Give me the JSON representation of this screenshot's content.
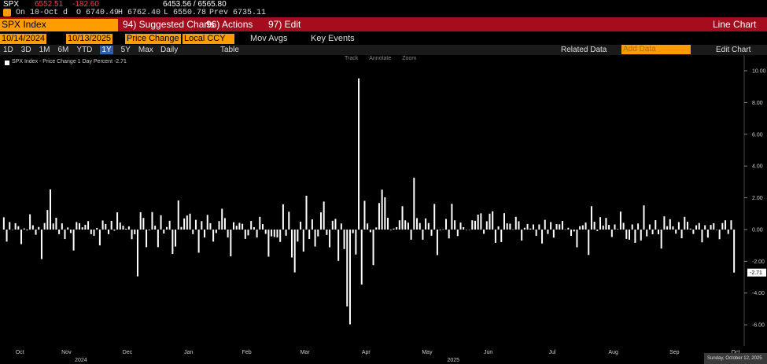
{
  "header": {
    "ticker": "SPX",
    "last": "6552.51",
    "change": "-182.60",
    "range": "6453.56 / 6565.80",
    "date": "On 10-Oct d",
    "open": "O 6740.49",
    "high": "H 6762.40",
    "low": "L 6550.78",
    "prev": "Prev 6735.11"
  },
  "toolbar": {
    "security": "SPX Index",
    "suggested": "94) Suggested Charts",
    "actions": "96) Actions",
    "edit": "97) Edit",
    "chart_type": "Line Chart"
  },
  "controls": {
    "start": "10/14/2024",
    "end": "10/13/2025",
    "field": "Price Change",
    "currency": "Local CCY",
    "mov_avgs": "Mov Avgs",
    "key_events": "Key Events"
  },
  "periods": [
    "1D",
    "3D",
    "1M",
    "6M",
    "YTD",
    "1Y",
    "5Y",
    "Max"
  ],
  "frequency": "Daily",
  "table": "Table",
  "related": "Related Data",
  "add_data": "Add Data",
  "edit_chart": "Edit Chart",
  "chart_tools": [
    "Track",
    "Annotate",
    "Zoom"
  ],
  "chart_data": {
    "type": "bar",
    "legend": "SPX Index - Price Change 1 Day Percent",
    "last_label": "-2.71",
    "color": "#ffffff",
    "values": [
      0.77,
      -0.76,
      0.47,
      -0.02,
      0.4,
      0.21,
      -0.92,
      0.07,
      -0.05,
      0.96,
      0.27,
      -0.33,
      0.16,
      -1.86,
      0.41,
      1.23,
      2.53,
      0.38,
      0.74,
      -0.29,
      0.39,
      -0.6,
      0.13,
      -0.22,
      -1.32,
      0.47,
      0.4,
      0.14,
      0.3,
      0.53,
      -0.29,
      -0.39,
      0.1,
      -1.0,
      0.57,
      0.35,
      -0.29,
      0.54,
      -0.07,
      1.08,
      0.44,
      0.24,
      0.05,
      0.2,
      -0.61,
      -0.3,
      -2.95,
      1.09,
      0.73,
      -1.11,
      -0.04,
      1.1,
      0.24,
      -1.11,
      0.9,
      -0.25,
      0.16,
      0.55,
      -1.54,
      -1.07,
      1.83,
      0.16,
      0.7,
      0.88,
      1.0,
      -0.29,
      0.61,
      -1.46,
      0.53,
      -0.5,
      0.92,
      0.4,
      -0.76,
      -0.22,
      0.53,
      1.31,
      0.72,
      -0.5,
      -1.69,
      0.46,
      0.24,
      0.42,
      0.36,
      -0.59,
      -0.37,
      0.54,
      0.15,
      -0.5,
      0.8,
      0.34,
      -0.27,
      -1.71,
      -0.43,
      -0.47,
      -0.5,
      -0.78,
      1.59,
      -0.39,
      1.12,
      -1.76,
      -2.7,
      -0.76,
      0.49,
      -1.39,
      2.13,
      -0.6,
      0.64,
      -1.07,
      -0.43,
      1.08,
      1.76,
      -0.34,
      -1.12,
      0.55,
      0.67,
      -1.97,
      0.38,
      -1.23,
      -4.84,
      -5.97,
      -0.23,
      -1.57,
      9.52,
      -3.46,
      1.81,
      0.38,
      -0.17,
      -2.24,
      0.13,
      1.67,
      2.51,
      2.03,
      0.74,
      -0.04,
      0.06,
      0.15,
      0.58,
      1.47,
      0.58,
      0.43,
      -0.64,
      3.26,
      0.72,
      0.41,
      -0.64,
      0.7,
      0.41,
      -0.39,
      1.61,
      -1.61,
      -0.04,
      0.02,
      0.67,
      -0.56,
      1.62,
      0.58,
      -0.41,
      0.44,
      0.15,
      -0.01,
      0.0,
      0.58,
      0.55,
      0.94,
      1.02,
      -0.27,
      0.52,
      1.0,
      1.15,
      -0.84,
      0.2,
      -0.79,
      1.03,
      0.39,
      0.37,
      0.01,
      0.8,
      0.52,
      -0.69,
      0.11,
      0.35,
      0.06,
      0.32,
      -0.4,
      0.32,
      -0.88,
      0.61,
      -0.28,
      0.47,
      -0.51,
      0.34,
      0.33,
      0.54,
      0.01,
      0.11,
      -0.4,
      -0.12,
      -1.12,
      0.21,
      0.27,
      0.44,
      -1.6,
      1.47,
      0.49,
      -0.09,
      0.78,
      0.25,
      0.73,
      0.29,
      -0.47,
      0.32,
      0.03,
      1.13,
      0.42,
      -0.59,
      -0.64,
      0.32,
      -0.84,
      0.38,
      -0.69,
      1.52,
      -0.43,
      0.32,
      -0.3,
      0.59,
      -0.3,
      -1.2,
      0.83,
      0.21,
      0.65,
      0.2,
      -0.26,
      0.47,
      -0.55,
      0.8,
      0.49,
      0.06,
      -0.28,
      0.27,
      0.41,
      -0.81,
      0.27,
      -0.51,
      0.29,
      0.4,
      0.0,
      -0.61,
      0.41,
      0.58,
      -0.28,
      0.58,
      -2.71
    ],
    "xlim": [
      0,
      252
    ],
    "ylim": [
      -7.33,
      10.99
    ],
    "yticks": [
      {
        "value": 10,
        "label": "10.00"
      },
      {
        "value": 8,
        "label": "8.00"
      },
      {
        "value": 6,
        "label": "6.00"
      },
      {
        "value": 4,
        "label": "4.00"
      },
      {
        "value": 2,
        "label": "2.00"
      },
      {
        "value": 0,
        "label": "0.00"
      },
      {
        "value": -2,
        "label": "-2.00"
      },
      {
        "value": -4,
        "label": "-4.00"
      },
      {
        "value": -6,
        "label": "-6.00"
      }
    ],
    "xticks": [
      {
        "value": 6,
        "label": "Oct"
      },
      {
        "value": 22,
        "label": "Nov"
      },
      {
        "value": 43,
        "label": "Dec"
      },
      {
        "value": 64,
        "label": "Jan"
      },
      {
        "value": 84,
        "label": "Feb"
      },
      {
        "value": 104,
        "label": "Mar"
      },
      {
        "value": 125,
        "label": "Apr"
      },
      {
        "value": 146,
        "label": "May"
      },
      {
        "value": 167,
        "label": "Jun"
      },
      {
        "value": 189,
        "label": "Jul"
      },
      {
        "value": 210,
        "label": "Aug"
      },
      {
        "value": 231,
        "label": "Sep"
      },
      {
        "value": 252,
        "label": "Oct"
      }
    ],
    "year_labels": [
      {
        "value": 27,
        "label": "2024"
      },
      {
        "value": 155,
        "label": "2025"
      }
    ],
    "date_label": "Sunday, October 12, 2025"
  }
}
